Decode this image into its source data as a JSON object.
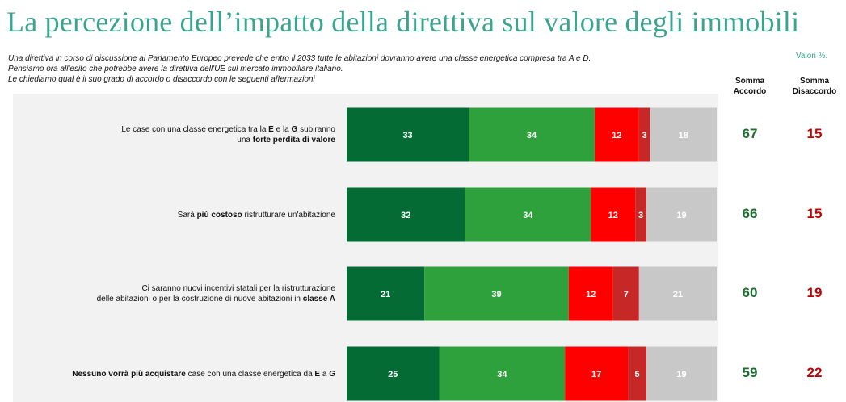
{
  "header": {
    "title": "La percezione dell’impatto della direttiva sul valore degli immobili",
    "intro": [
      "Una direttiva in corso di discussione al Parlamento Europeo prevede che entro il 2033 tutte le abitazioni dovranno avere una classe energetica compresa tra A e D.",
      "Pensiamo ora all'esito che potrebbe avere la direttiva dell'UE sul mercato immobiliare italiano.",
      "Le chiediamo qual è il suo grado di accordo o disaccordo con le seguenti affermazioni"
    ],
    "unit_note": "Valori %.",
    "col_accordo": [
      "Somma",
      "Accordo"
    ],
    "col_disaccordo": [
      "Somma",
      "Disaccordo"
    ]
  },
  "colors": {
    "title": "#3aa58f",
    "accordo_sum": "#1e6e32",
    "disaccordo_sum": "#c00000",
    "panel": "#f2f2f2"
  },
  "chart_data": {
    "type": "bar",
    "orientation": "horizontal",
    "stacked": true,
    "series_colors": [
      "#056b35",
      "#2ea13c",
      "#ff0000",
      "#c62828",
      "#c8c8c8"
    ],
    "rows": [
      {
        "label": [
          {
            "t": "Le case con una classe energetica tra la "
          },
          {
            "t": "E",
            "b": true
          },
          {
            "t": " e la "
          },
          {
            "t": "G",
            "b": true
          },
          {
            "t": " subiranno"
          },
          {
            "br": true
          },
          {
            "t": "una "
          },
          {
            "t": "forte perdita di valore",
            "b": true
          }
        ],
        "values": [
          33,
          34,
          12,
          3,
          18
        ],
        "somma_accordo": 67,
        "somma_disaccordo": 15
      },
      {
        "label": [
          {
            "t": "Sarà "
          },
          {
            "t": "più costoso",
            "b": true
          },
          {
            "t": " ristrutturare un'abitazione"
          }
        ],
        "values": [
          32,
          34,
          12,
          3,
          19
        ],
        "somma_accordo": 66,
        "somma_disaccordo": 15
      },
      {
        "label": [
          {
            "t": "Ci saranno nuovi incentivi statali per la ristrutturazione"
          },
          {
            "br": true
          },
          {
            "t": "delle abitazioni o per la costruzione di nuove abitazioni in "
          },
          {
            "t": "classe A",
            "b": true
          }
        ],
        "values": [
          21,
          39,
          12,
          7,
          21
        ],
        "somma_accordo": 60,
        "somma_disaccordo": 19
      },
      {
        "label": [
          {
            "t": "Nessuno vorrà più acquistare",
            "b": true
          },
          {
            "t": " case con una classe energetica da "
          },
          {
            "t": "E",
            "b": true
          },
          {
            "t": " a "
          },
          {
            "t": "G",
            "b": true
          }
        ],
        "values": [
          25,
          34,
          17,
          5,
          19
        ],
        "somma_accordo": 59,
        "somma_disaccordo": 22
      }
    ]
  }
}
